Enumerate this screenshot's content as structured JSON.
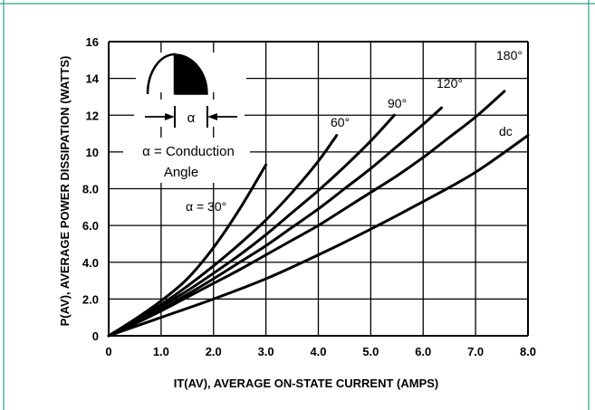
{
  "chart_data": {
    "type": "line",
    "title": "",
    "xlabel": "IT(AV), AVERAGE ON-STATE CURRENT (AMPS)",
    "ylabel": "P(AV), AVERAGE POWER DISSIPATION (WATTS)",
    "xlim": [
      0,
      8
    ],
    "ylim": [
      0,
      16
    ],
    "x_ticks": [
      "0",
      "1.0",
      "2.0",
      "3.0",
      "4.0",
      "5.0",
      "6.0",
      "7.0",
      "8.0"
    ],
    "y_ticks": [
      "0",
      "2.0",
      "4.0",
      "6.0",
      "8.0",
      "10",
      "12",
      "14",
      "16"
    ],
    "grid": true,
    "series": [
      {
        "name": "α = 30°",
        "x": [
          0,
          0.5,
          1.0,
          1.5,
          2.0,
          2.5,
          3.0
        ],
        "y": [
          0,
          0.9,
          1.9,
          3.1,
          4.8,
          6.9,
          9.3
        ]
      },
      {
        "name": "60°",
        "x": [
          0,
          0.5,
          1.0,
          1.5,
          2.0,
          2.5,
          3.0,
          3.5,
          4.0,
          4.35
        ],
        "y": [
          0,
          0.8,
          1.7,
          2.7,
          3.8,
          5.0,
          6.3,
          7.8,
          9.5,
          10.9
        ]
      },
      {
        "name": "90°",
        "x": [
          0,
          0.5,
          1.0,
          1.5,
          2.0,
          2.5,
          3.0,
          3.5,
          4.0,
          4.5,
          5.0,
          5.45
        ],
        "y": [
          0,
          0.75,
          1.6,
          2.45,
          3.4,
          4.4,
          5.5,
          6.7,
          7.9,
          9.2,
          10.6,
          12.0
        ]
      },
      {
        "name": "120°",
        "x": [
          0,
          0.5,
          1.0,
          1.5,
          2.0,
          2.5,
          3.0,
          3.5,
          4.0,
          4.5,
          5.0,
          5.5,
          6.0,
          6.35
        ],
        "y": [
          0,
          0.7,
          1.45,
          2.25,
          3.1,
          4.0,
          4.9,
          5.9,
          6.9,
          8.0,
          9.1,
          10.3,
          11.5,
          12.4
        ]
      },
      {
        "name": "180°",
        "x": [
          0,
          0.5,
          1.0,
          1.5,
          2.0,
          2.5,
          3.0,
          3.5,
          4.0,
          4.5,
          5.0,
          5.5,
          6.0,
          6.5,
          7.0,
          7.55
        ],
        "y": [
          0,
          0.65,
          1.35,
          2.1,
          2.85,
          3.6,
          4.4,
          5.2,
          6.0,
          6.9,
          7.8,
          8.7,
          9.7,
          10.8,
          11.9,
          13.3
        ]
      },
      {
        "name": "dc",
        "x": [
          0,
          1.0,
          2.0,
          3.0,
          4.0,
          5.0,
          6.0,
          7.0,
          8.0
        ],
        "y": [
          0,
          1.0,
          2.0,
          3.1,
          4.4,
          5.8,
          7.3,
          8.9,
          10.9
        ]
      }
    ],
    "inset": {
      "alpha_symbol": "α",
      "caption_line1": "α = Conduction",
      "caption_line2": "Angle"
    }
  },
  "colors": {
    "frame_border": "#2e9e8a",
    "grid": "#000000",
    "curve": "#000000"
  }
}
